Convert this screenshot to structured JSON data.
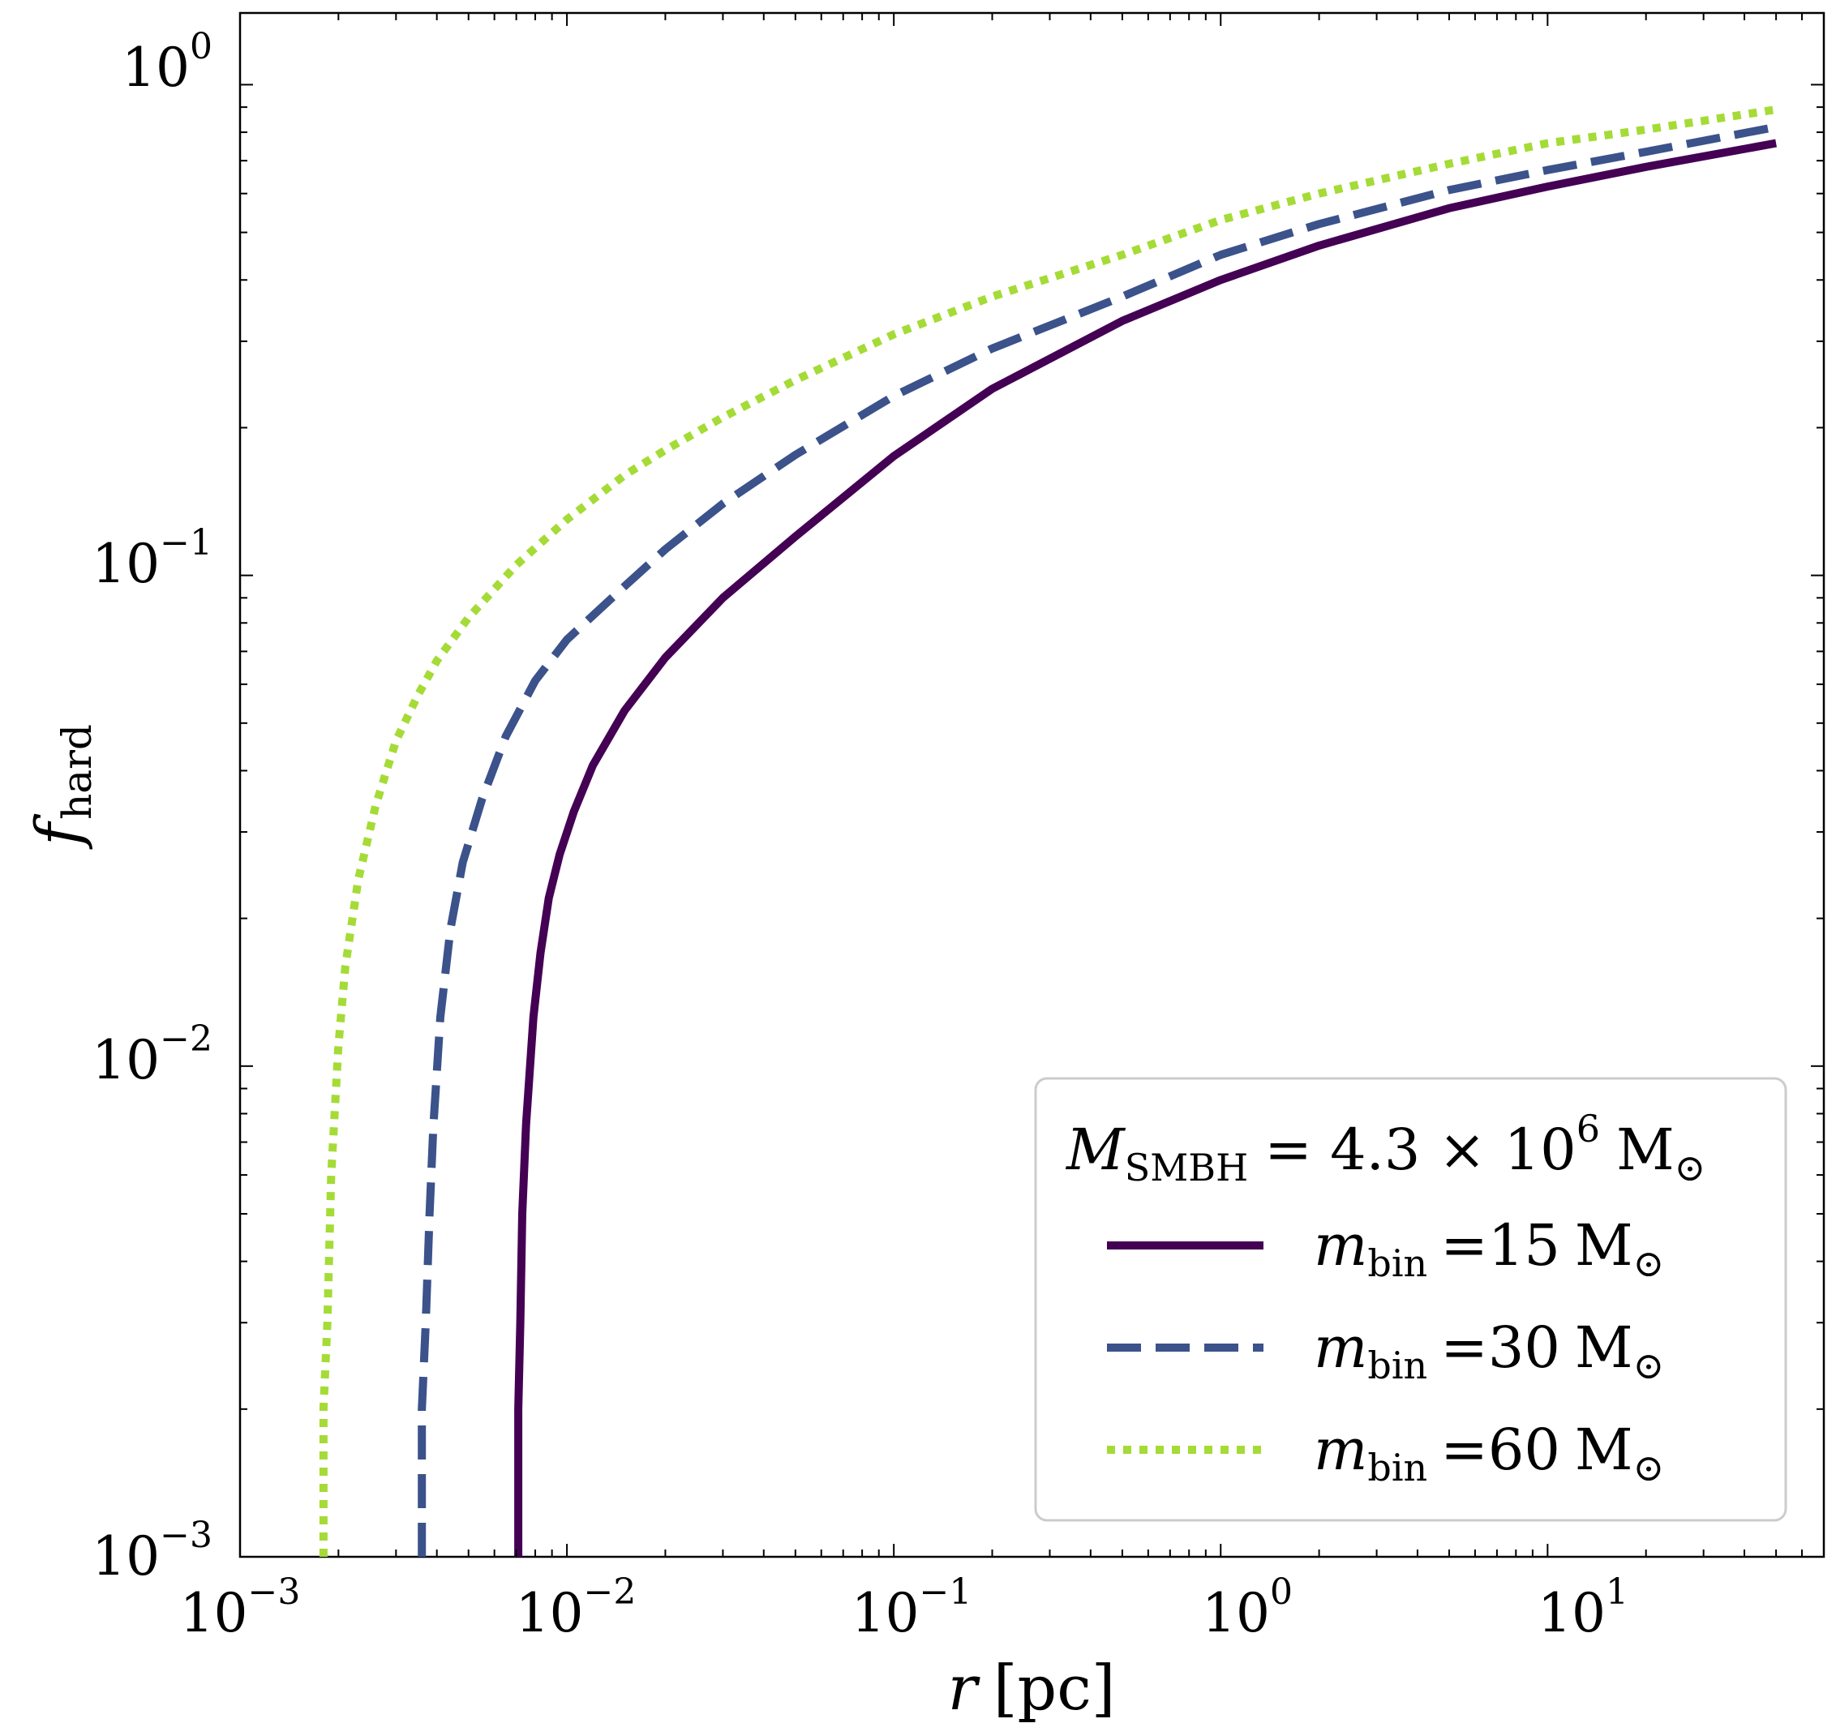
{
  "chart_data": {
    "type": "line",
    "xscale": "log",
    "yscale": "log",
    "xlim": [
      0.001,
      70
    ],
    "ylim": [
      0.001,
      1.4
    ],
    "xlabel": {
      "var": "r",
      "unit": "[pc]"
    },
    "ylabel": {
      "base": "f",
      "sub": "hard"
    },
    "xticks": [
      {
        "value": 0.001,
        "base": "10",
        "exp": "−3"
      },
      {
        "value": 0.01,
        "base": "10",
        "exp": "−2"
      },
      {
        "value": 0.1,
        "base": "10",
        "exp": "−1"
      },
      {
        "value": 1,
        "base": "10",
        "exp": "0"
      },
      {
        "value": 10,
        "base": "10",
        "exp": "1"
      }
    ],
    "yticks": [
      {
        "value": 0.001,
        "base": "10",
        "exp": "−3"
      },
      {
        "value": 0.01,
        "base": "10",
        "exp": "−2"
      },
      {
        "value": 0.1,
        "base": "10",
        "exp": "−1"
      },
      {
        "value": 1,
        "base": "10",
        "exp": "0"
      }
    ],
    "legend": {
      "location": "lower-right",
      "title": {
        "var": "M",
        "sub": "SMBH",
        "rel": "= 4.3 × 10",
        "exp": "6",
        "unit": "M",
        "sun": "⊙"
      },
      "var": "m",
      "sub": "bin",
      "unit": "M",
      "sun": "⊙"
    },
    "series": [
      {
        "name": "m_bin = 15 M☉",
        "label_value": "=15",
        "color": "#440154",
        "dash": "solid",
        "x": [
          0.0071,
          0.0071,
          0.0072,
          0.0073,
          0.0075,
          0.0079,
          0.0083,
          0.0088,
          0.0095,
          0.0105,
          0.012,
          0.015,
          0.02,
          0.03,
          0.05,
          0.1,
          0.2,
          0.5,
          1,
          2,
          5,
          10,
          20,
          50
        ],
        "y": [
          0.001,
          0.002,
          0.003,
          0.005,
          0.0076,
          0.0126,
          0.017,
          0.022,
          0.027,
          0.033,
          0.041,
          0.053,
          0.068,
          0.09,
          0.12,
          0.175,
          0.24,
          0.33,
          0.4,
          0.47,
          0.56,
          0.62,
          0.68,
          0.76
        ]
      },
      {
        "name": "m_bin = 30 M☉",
        "label_value": "=30",
        "color": "#3b528b",
        "dash": "dashed",
        "x": [
          0.0036,
          0.0036,
          0.0037,
          0.0038,
          0.0039,
          0.0041,
          0.0044,
          0.0048,
          0.0055,
          0.0065,
          0.008,
          0.01,
          0.015,
          0.02,
          0.03,
          0.05,
          0.1,
          0.2,
          0.5,
          1,
          2,
          5,
          10,
          20,
          50
        ],
        "y": [
          0.001,
          0.002,
          0.003,
          0.005,
          0.0075,
          0.0126,
          0.019,
          0.026,
          0.035,
          0.047,
          0.061,
          0.074,
          0.095,
          0.113,
          0.14,
          0.176,
          0.232,
          0.29,
          0.37,
          0.45,
          0.52,
          0.61,
          0.67,
          0.73,
          0.82
        ]
      },
      {
        "name": "m_bin = 60 M☉",
        "label_value": "=60",
        "color": "#a5db36",
        "dash": "dotted",
        "x": [
          0.0018,
          0.0018,
          0.00185,
          0.0019,
          0.002,
          0.0021,
          0.0023,
          0.0026,
          0.003,
          0.0035,
          0.004,
          0.005,
          0.007,
          0.01,
          0.015,
          0.02,
          0.03,
          0.05,
          0.1,
          0.2,
          0.5,
          1,
          2,
          5,
          10,
          20,
          50
        ],
        "y": [
          0.001,
          0.002,
          0.003,
          0.006,
          0.011,
          0.016,
          0.024,
          0.034,
          0.046,
          0.057,
          0.067,
          0.082,
          0.105,
          0.13,
          0.16,
          0.18,
          0.21,
          0.25,
          0.31,
          0.37,
          0.45,
          0.53,
          0.6,
          0.69,
          0.76,
          0.81,
          0.89
        ]
      }
    ]
  }
}
